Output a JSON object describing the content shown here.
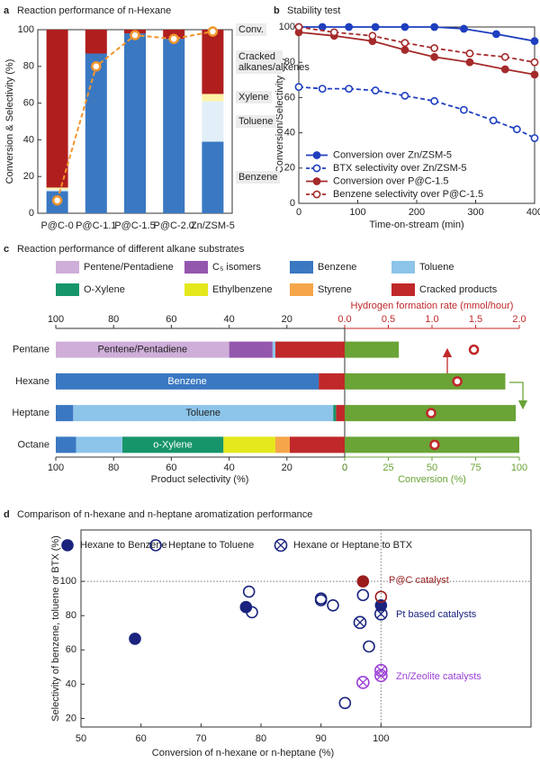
{
  "chart_data": [
    {
      "type": "bar",
      "panel": "a",
      "title": "Reaction performance of n-Hexane",
      "ylabel": "Conversion & Selectivity (%)",
      "categories": [
        "P@C-0",
        "P@C-1.1",
        "P@C-1.5",
        "P@C-2.0",
        "Zn/ZSM-5"
      ],
      "stacked": true,
      "ylim": [
        0,
        100
      ],
      "yticks": [
        0,
        20,
        40,
        60,
        80,
        100
      ],
      "series": [
        {
          "name": "Benzene",
          "color": "#3a78c2",
          "values": [
            12,
            87,
            98,
            95,
            39
          ]
        },
        {
          "name": "Toluene",
          "color": "#e2eff9",
          "values": [
            1,
            0,
            0,
            0,
            22
          ]
        },
        {
          "name": "Xylene",
          "color": "#fff3a6",
          "values": [
            1,
            0,
            0,
            0,
            4
          ]
        },
        {
          "name": "Cracked alkanes/alkenes",
          "color": "#b01e1e",
          "values": [
            86,
            13,
            2,
            5,
            35
          ]
        }
      ],
      "line": {
        "name": "Conv.",
        "color": "#f0962e",
        "values": [
          7,
          80,
          97,
          95,
          99
        ]
      }
    },
    {
      "type": "line",
      "panel": "b",
      "title": "Stability test",
      "xlabel": "Time-on-stream (min)",
      "ylabel": "Conversion/Selectivity (%)",
      "xlim": [
        0,
        400
      ],
      "xticks": [
        0,
        100,
        200,
        300,
        400
      ],
      "ylim": [
        0,
        100
      ],
      "yticks": [
        0,
        20,
        40,
        60,
        80,
        100
      ],
      "legend": "lower left",
      "series": [
        {
          "name": "Conversion over Zn/ZSM-5",
          "color": "#1f3fbf",
          "dashed": false,
          "filled": true,
          "x": [
            0,
            40,
            85,
            130,
            180,
            230,
            280,
            335,
            400
          ],
          "values": [
            100,
            100,
            100,
            100,
            100,
            100,
            99,
            96,
            92
          ]
        },
        {
          "name": "BTX selectivity over Zn/ZSM-5",
          "color": "#1f3fbf",
          "dashed": true,
          "filled": false,
          "x": [
            0,
            40,
            85,
            130,
            180,
            230,
            280,
            330,
            370,
            400
          ],
          "values": [
            66,
            65,
            65,
            64,
            61,
            58,
            53,
            47,
            42,
            37
          ]
        },
        {
          "name": "Conversion over P@C-1.5",
          "color": "#a52a2a",
          "dashed": false,
          "filled": true,
          "x": [
            0,
            60,
            125,
            180,
            230,
            290,
            350,
            400
          ],
          "values": [
            97,
            95,
            92,
            87,
            83,
            80,
            76,
            73
          ]
        },
        {
          "name": "Benzene selectivity over P@C-1.5",
          "color": "#a52a2a",
          "dashed": true,
          "filled": false,
          "x": [
            0,
            60,
            125,
            180,
            230,
            290,
            350,
            400
          ],
          "values": [
            100,
            97,
            95,
            91,
            88,
            85,
            83,
            80
          ]
        }
      ]
    },
    {
      "type": "hbar",
      "panel": "c",
      "title": "Reaction performance of different alkane substrates",
      "categories": [
        "Pentane",
        "Hexane",
        "Heptane",
        "Octane"
      ],
      "xlabel": "Product selectivity (%)",
      "xlim": [
        100,
        0
      ],
      "xticks": [
        100,
        80,
        60,
        40,
        20,
        0
      ],
      "series": [
        {
          "name": "Pentene/Pentadiene",
          "color": "#cfaed9",
          "values": [
            60,
            null,
            null,
            null
          ]
        },
        {
          "name": "C₅ isomers",
          "color": "#9457ae",
          "values": [
            15,
            null,
            null,
            null
          ]
        },
        {
          "name": "Benzene",
          "color": "#3a78c2",
          "values": [
            null,
            91,
            6,
            7
          ]
        },
        {
          "name": "Toluene",
          "color": "#8cc4ea",
          "values": [
            1,
            null,
            90,
            16
          ]
        },
        {
          "name": "O-Xylene",
          "color": "#17956a",
          "values": [
            null,
            null,
            1,
            35
          ]
        },
        {
          "name": "Ethylbenzene",
          "color": "#e4e81c",
          "values": [
            null,
            null,
            null,
            18
          ]
        },
        {
          "name": "Styrene",
          "color": "#f5a54a",
          "values": [
            null,
            null,
            null,
            5
          ]
        },
        {
          "name": "Cracked products",
          "color": "#c0282a",
          "values": [
            24,
            9,
            3,
            19
          ]
        }
      ],
      "bar_labels": [
        "Pentene/Pentadiene",
        "Benzene",
        "Toluene",
        "o-Xylene"
      ],
      "x2label": "Conversion (%)",
      "x2lim": [
        0,
        100
      ],
      "x2ticks": [
        0,
        25,
        50,
        75,
        100
      ],
      "conversion": {
        "color": "#6aa336",
        "values": [
          31,
          92,
          98,
          100
        ]
      },
      "x3label": "Hydrogen formation rate (mmol/hour)",
      "x3lim": [
        0,
        2
      ],
      "x3ticks": [
        {
          "value": 0,
          "label": "0.0"
        },
        0.5,
        {
          "value": 1,
          "label": "1.0"
        },
        1.5,
        {
          "value": 2,
          "label": "2.0"
        }
      ],
      "hydrogen": {
        "color": "#c0282a",
        "values": [
          1.48,
          1.29,
          0.99,
          1.03
        ]
      }
    },
    {
      "type": "scatter",
      "panel": "d",
      "title": "Comparison of n-hexane and n-heptane aromatization performance",
      "xlabel": "Conversion of n-hexane or n-heptane (%)",
      "ylabel": "Selectivity of benzene, toluene or BTX (%)",
      "xlim": [
        50,
        125
      ],
      "xticks": [
        50,
        60,
        70,
        80,
        90,
        100
      ],
      "ylim": [
        15,
        130
      ],
      "yticks": [
        20,
        40,
        60,
        80,
        100
      ],
      "reference_lines": {
        "x": 100,
        "y": 100
      },
      "series": [
        {
          "name": "Hexane to Benzene",
          "marker": "filled",
          "color": "#1a237e",
          "x": [
            59,
            77.5,
            97,
            100
          ],
          "values": [
            66.5,
            85,
            100,
            86
          ],
          "point_colors": [
            "#1a237e",
            "#1a237e",
            "#9b1c1c",
            "#1a237e"
          ]
        },
        {
          "name": "Heptane to Toluene",
          "marker": "open",
          "color": "#1a237e",
          "x": [
            78,
            78.5,
            90,
            90,
            92,
            97,
            98,
            94,
            100
          ],
          "values": [
            94,
            82,
            89,
            90,
            86,
            92,
            62,
            29,
            91
          ],
          "point_colors": [
            "#1a237e",
            "#1a237e",
            "#1a237e",
            "#1a237e",
            "#1a237e",
            "#1a237e",
            "#1a237e",
            "#1a237e",
            "#9b1c1c"
          ]
        },
        {
          "name": "Hexane or Heptane to BTX",
          "marker": "crossed",
          "color": "#1a237e",
          "x": [
            96.5,
            100,
            100,
            100,
            97
          ],
          "values": [
            76,
            81,
            48,
            45,
            41
          ],
          "point_colors": [
            "#1a237e",
            "#1a237e",
            "#9b3fd6",
            "#9b3fd6",
            "#9b3fd6"
          ]
        }
      ],
      "annotations": [
        "P@C catalyst",
        "Pt based catalysts",
        "Zn/Zeolite catalysts"
      ]
    }
  ]
}
